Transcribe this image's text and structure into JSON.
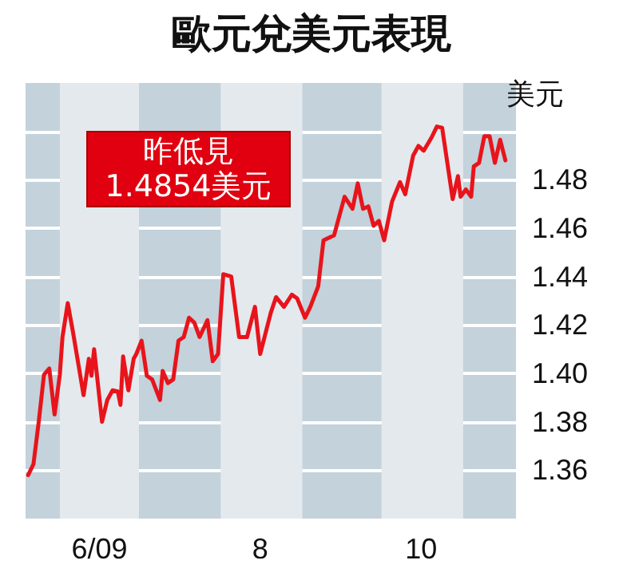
{
  "chart_data": {
    "type": "line",
    "title": "歐元兌美元表現",
    "ylabel": "美元",
    "annotations": [
      "昨低見\n1.4854美元"
    ],
    "x": [
      "2009-05-20",
      "2009-05-22",
      "2009-05-24",
      "2009-05-26",
      "2009-05-28",
      "2009-05-30",
      "2009-06-01",
      "2009-06-02",
      "2009-06-04",
      "2009-06-06",
      "2009-06-08",
      "2009-06-10",
      "2009-06-12",
      "2009-06-13",
      "2009-06-14",
      "2009-06-17",
      "2009-06-19",
      "2009-06-21",
      "2009-06-23",
      "2009-06-24",
      "2009-06-25",
      "2009-06-27",
      "2009-06-29",
      "2009-06-30",
      "2009-07-02",
      "2009-07-04",
      "2009-07-06",
      "2009-07-09",
      "2009-07-10",
      "2009-07-12",
      "2009-07-14",
      "2009-07-16",
      "2009-07-18",
      "2009-07-20",
      "2009-07-22",
      "2009-07-24",
      "2009-07-27",
      "2009-07-29",
      "2009-07-31",
      "2009-08-02",
      "2009-08-05",
      "2009-08-08",
      "2009-08-11",
      "2009-08-14",
      "2009-08-16",
      "2009-08-20",
      "2009-08-22",
      "2009-08-25",
      "2009-08-28",
      "2009-08-30",
      "2009-09-02",
      "2009-09-04",
      "2009-09-07",
      "2009-09-09",
      "2009-09-13",
      "2009-09-17",
      "2009-09-20",
      "2009-09-22",
      "2009-09-24",
      "2009-09-26",
      "2009-09-28",
      "2009-09-30",
      "2009-10-02",
      "2009-10-05",
      "2009-10-08",
      "2009-10-10",
      "2009-10-13",
      "2009-10-15",
      "2009-10-17",
      "2009-10-20",
      "2009-10-22",
      "2009-10-24",
      "2009-10-28",
      "2009-10-30",
      "2009-10-31",
      "2009-11-02",
      "2009-11-04",
      "2009-11-05",
      "2009-11-07",
      "2009-11-09",
      "2009-11-11",
      "2009-11-13",
      "2009-11-15",
      "2009-11-17"
    ],
    "series": [
      {
        "color": "#e8141b",
        "values": [
          1.358,
          1.3625,
          1.38,
          1.3995,
          1.402,
          1.383,
          1.3995,
          1.415,
          1.429,
          1.417,
          1.404,
          1.391,
          1.406,
          1.399,
          1.41,
          1.38,
          1.389,
          1.393,
          1.3925,
          1.387,
          1.407,
          1.393,
          1.406,
          1.408,
          1.4135,
          1.399,
          1.3975,
          1.389,
          1.401,
          1.396,
          1.3975,
          1.4135,
          1.415,
          1.423,
          1.421,
          1.415,
          1.422,
          1.405,
          1.408,
          1.441,
          1.44,
          1.415,
          1.415,
          1.4275,
          1.408,
          1.425,
          1.4315,
          1.4275,
          1.4325,
          1.431,
          1.423,
          1.4275,
          1.436,
          1.455,
          1.457,
          1.473,
          1.468,
          1.4785,
          1.468,
          1.469,
          1.461,
          1.463,
          1.455,
          1.471,
          1.479,
          1.474,
          1.49,
          1.494,
          1.492,
          1.4975,
          1.502,
          1.5015,
          1.472,
          1.4815,
          1.473,
          1.476,
          1.473,
          1.4855,
          1.487,
          1.498,
          1.498,
          1.487,
          1.4965,
          1.488
        ]
      }
    ],
    "xlim": [
      "2009-05-19",
      "2009-11-21"
    ],
    "xticks": [
      {
        "value": "2009-06-16",
        "label": "6/09"
      },
      {
        "value": "2009-08-16",
        "label": "8"
      },
      {
        "value": "2009-10-16",
        "label": "10"
      }
    ],
    "ylim": [
      1.34,
      1.52
    ],
    "yticks": [
      {
        "value": 1.36,
        "label": "1.36"
      },
      {
        "value": 1.38,
        "label": "1.38"
      },
      {
        "value": 1.4,
        "label": "1.40"
      },
      {
        "value": 1.42,
        "label": "1.42"
      },
      {
        "value": 1.44,
        "label": "1.44"
      },
      {
        "value": 1.46,
        "label": "1.46"
      },
      {
        "value": 1.48,
        "label": "1.48"
      },
      {
        "value": 1.5,
        "label": null
      }
    ],
    "bands": [
      {
        "axis": "x",
        "from": "2009-06-01",
        "to": "2009-07-01",
        "color": "#e4e9ed"
      },
      {
        "axis": "x",
        "from": "2009-08-01",
        "to": "2009-09-01",
        "color": "#e4e9ed"
      },
      {
        "axis": "x",
        "from": "2009-10-01",
        "to": "2009-11-01",
        "color": "#e4e9ed"
      }
    ],
    "grid": "y",
    "marker": "none",
    "line_style": "solid"
  }
}
